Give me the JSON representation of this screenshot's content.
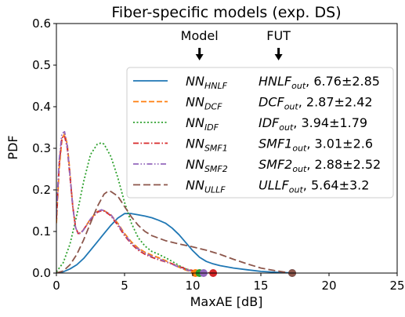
{
  "chart_data": {
    "type": "line",
    "title": "Fiber-specific models (exp. DS)",
    "xlabel": "MaxAE [dB]",
    "ylabel": "PDF",
    "xlim": [
      0,
      25
    ],
    "ylim": [
      0,
      0.6
    ],
    "xticks": [
      0,
      5,
      10,
      15,
      20,
      25
    ],
    "yticks": [
      0.0,
      0.1,
      0.2,
      0.3,
      0.4,
      0.5,
      0.6
    ],
    "xtick_labels": [
      "0",
      "5",
      "10",
      "15",
      "20",
      "25"
    ],
    "ytick_labels": [
      "0.0",
      "0.1",
      "0.2",
      "0.3",
      "0.4",
      "0.5",
      "0.6"
    ],
    "grid": false,
    "legend_placement": "center-right",
    "annotations": [
      {
        "text": "Model",
        "x": 10.5,
        "arrow": true
      },
      {
        "text": "FUT",
        "x": 16.3,
        "arrow": true
      }
    ],
    "series": [
      {
        "model": "NN",
        "model_sub": "HNLF",
        "fut": "HNLF",
        "fut_sub": "out",
        "stat": ", 6.76±2.85",
        "color": "#1f77b4",
        "dash": "",
        "marker_x": 17.3,
        "x": [
          0,
          0.5,
          1,
          1.5,
          2,
          2.5,
          3,
          3.5,
          4,
          4.5,
          5,
          5.5,
          6,
          6.5,
          7,
          7.5,
          8,
          8.5,
          9,
          9.5,
          10,
          10.5,
          11,
          11.5,
          12,
          13,
          14,
          15,
          16,
          17,
          17.3
        ],
        "y": [
          0.0,
          0.003,
          0.01,
          0.02,
          0.035,
          0.055,
          0.075,
          0.095,
          0.115,
          0.132,
          0.143,
          0.143,
          0.14,
          0.137,
          0.133,
          0.127,
          0.12,
          0.108,
          0.092,
          0.073,
          0.054,
          0.038,
          0.028,
          0.022,
          0.018,
          0.012,
          0.008,
          0.004,
          0.002,
          0.0005,
          0.0
        ]
      },
      {
        "model": "NN",
        "model_sub": "DCF",
        "fut": "DCF",
        "fut_sub": "out",
        "stat": ", 2.87±2.42",
        "color": "#ff7f0e",
        "dash": "7,3",
        "marker_x": 10.2,
        "x": [
          0,
          0.2,
          0.4,
          0.6,
          0.8,
          1,
          1.2,
          1.4,
          1.6,
          1.8,
          2,
          2.5,
          3,
          3.3,
          3.5,
          4,
          4.5,
          5,
          5.5,
          6,
          6.5,
          7,
          7.5,
          8,
          8.5,
          9,
          9.5,
          10,
          10.2
        ],
        "y": [
          0.12,
          0.25,
          0.32,
          0.335,
          0.31,
          0.24,
          0.16,
          0.11,
          0.095,
          0.097,
          0.105,
          0.13,
          0.148,
          0.151,
          0.15,
          0.14,
          0.12,
          0.095,
          0.075,
          0.06,
          0.05,
          0.043,
          0.037,
          0.03,
          0.022,
          0.014,
          0.007,
          0.002,
          0.0
        ]
      },
      {
        "model": "NN",
        "model_sub": "IDF",
        "fut": "IDF",
        "fut_sub": "out",
        "stat": ", 3.94±1.79",
        "color": "#2ca02c",
        "dash": "2,2.5",
        "marker_x": 10.5,
        "x": [
          0,
          0.5,
          1,
          1.5,
          2,
          2.5,
          3,
          3.3,
          3.5,
          4,
          4.5,
          5,
          5.5,
          6,
          6.5,
          7,
          7.5,
          8,
          8.5,
          9,
          9.5,
          10,
          10.5
        ],
        "y": [
          0.003,
          0.025,
          0.07,
          0.14,
          0.22,
          0.285,
          0.31,
          0.313,
          0.31,
          0.28,
          0.23,
          0.17,
          0.12,
          0.085,
          0.065,
          0.052,
          0.045,
          0.037,
          0.028,
          0.018,
          0.01,
          0.004,
          0.0
        ]
      },
      {
        "model": "NN",
        "model_sub": "SMF1",
        "fut": "SMF1",
        "fut_sub": "out",
        "stat": ", 3.01±2.6",
        "color": "#d62728",
        "dash": "7,2.5,1.5,2.5",
        "marker_x": 11.5,
        "x": [
          0,
          0.2,
          0.4,
          0.6,
          0.8,
          1,
          1.2,
          1.4,
          1.6,
          1.8,
          2,
          2.5,
          3,
          3.3,
          3.5,
          4,
          4.5,
          5,
          5.5,
          6,
          6.5,
          7,
          7.5,
          8,
          8.5,
          9,
          9.5,
          10,
          10.5,
          11,
          11.5
        ],
        "y": [
          0.13,
          0.26,
          0.325,
          0.33,
          0.3,
          0.23,
          0.16,
          0.11,
          0.095,
          0.097,
          0.105,
          0.128,
          0.146,
          0.15,
          0.149,
          0.138,
          0.115,
          0.09,
          0.07,
          0.055,
          0.045,
          0.038,
          0.032,
          0.027,
          0.022,
          0.016,
          0.01,
          0.006,
          0.003,
          0.001,
          0.0
        ]
      },
      {
        "model": "NN",
        "model_sub": "SMF2",
        "fut": "SMF2",
        "fut_sub": "out",
        "stat": ", 2.88±2.52",
        "color": "#9467bd",
        "dash": "7,2.5,1.5,2.5,1.5,2.5",
        "marker_x": 10.8,
        "x": [
          0,
          0.2,
          0.4,
          0.6,
          0.8,
          1,
          1.2,
          1.4,
          1.6,
          1.8,
          2,
          2.5,
          3,
          3.3,
          3.5,
          4,
          4.5,
          5,
          5.5,
          6,
          6.5,
          7,
          7.5,
          8,
          8.5,
          9,
          9.5,
          10,
          10.5,
          10.8
        ],
        "y": [
          0.14,
          0.27,
          0.335,
          0.34,
          0.305,
          0.235,
          0.16,
          0.11,
          0.094,
          0.096,
          0.104,
          0.13,
          0.148,
          0.152,
          0.15,
          0.14,
          0.118,
          0.093,
          0.072,
          0.058,
          0.048,
          0.04,
          0.034,
          0.028,
          0.021,
          0.014,
          0.008,
          0.004,
          0.001,
          0.0
        ]
      },
      {
        "model": "NN",
        "model_sub": "ULLF",
        "fut": "ULLF",
        "fut_sub": "out",
        "stat": ", 5.64±3.2",
        "color": "#8c564b",
        "dash": "9,4",
        "marker_x": 17.3,
        "x": [
          0,
          0.5,
          1,
          1.5,
          2,
          2.5,
          3,
          3.5,
          3.8,
          4,
          4.5,
          5,
          5.5,
          6,
          6.5,
          7,
          8,
          9,
          10,
          11,
          12,
          13,
          14,
          15,
          16,
          17,
          17.3
        ],
        "y": [
          0.0,
          0.005,
          0.02,
          0.045,
          0.08,
          0.12,
          0.16,
          0.19,
          0.197,
          0.196,
          0.185,
          0.16,
          0.135,
          0.115,
          0.1,
          0.09,
          0.078,
          0.07,
          0.063,
          0.055,
          0.045,
          0.033,
          0.022,
          0.012,
          0.006,
          0.001,
          0.0
        ]
      }
    ]
  }
}
